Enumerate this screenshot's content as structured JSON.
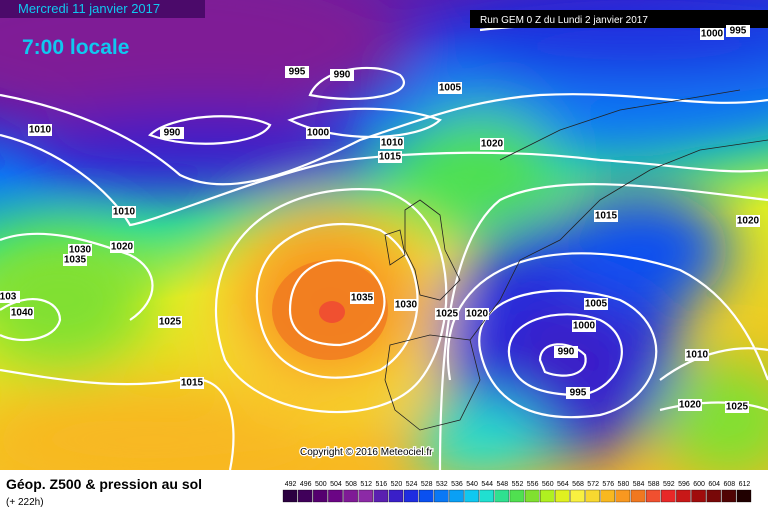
{
  "header": {
    "date": "Mercredi 11 janvier 2017",
    "time": "7:00 locale",
    "run": "Run GEM 0 Z du Lundi 2 janvier 2017"
  },
  "isobar_labels": [
    995,
    990,
    1005,
    1000,
    995,
    1010,
    990,
    1000,
    1010,
    1015,
    1020,
    1010,
    1015,
    1020,
    1030,
    1020,
    1035,
    1035,
    1030,
    1025,
    1020,
    1005,
    103,
    1040,
    1025,
    1000,
    990,
    1010,
    995,
    1015,
    1020,
    1025
  ],
  "copyright": "Copyright © 2016 Meteociel.fr",
  "legend": {
    "title": "Géop. Z500 & pression au sol",
    "lead": "(+ 222h)",
    "scale": [
      492,
      496,
      500,
      504,
      508,
      512,
      516,
      520,
      524,
      528,
      532,
      536,
      540,
      544,
      548,
      552,
      556,
      560,
      564,
      568,
      572,
      576,
      580,
      584,
      588,
      592,
      596,
      600,
      604,
      608,
      612
    ]
  }
}
